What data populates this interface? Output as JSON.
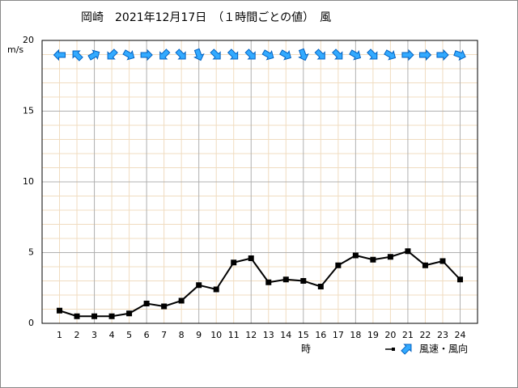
{
  "chart_data": {
    "type": "line",
    "title": "岡崎　2021年12月17日　（１時間ごとの値）　風",
    "y_label": "m/s",
    "x_label": "時",
    "x": [
      1,
      2,
      3,
      4,
      5,
      6,
      7,
      8,
      9,
      10,
      11,
      12,
      13,
      14,
      15,
      16,
      17,
      18,
      19,
      20,
      21,
      22,
      23,
      24
    ],
    "xlim": [
      0,
      25
    ],
    "xticks": [
      1,
      2,
      3,
      4,
      5,
      6,
      7,
      8,
      9,
      10,
      11,
      12,
      13,
      14,
      15,
      16,
      17,
      18,
      19,
      20,
      21,
      22,
      23,
      24
    ],
    "ylim": [
      0,
      20
    ],
    "yticks": [
      0,
      5,
      10,
      15,
      20
    ],
    "yminor": [
      1,
      2,
      3,
      4,
      6,
      7,
      8,
      9,
      11,
      12,
      13,
      14,
      16,
      17,
      18,
      19
    ],
    "grid": true,
    "series": [
      {
        "name": "風速・風向",
        "color": "#000000",
        "values": [
          0.9,
          0.5,
          0.5,
          0.5,
          0.7,
          1.4,
          1.2,
          1.6,
          2.7,
          2.4,
          4.3,
          4.6,
          2.9,
          3.1,
          3.0,
          2.6,
          4.1,
          4.8,
          4.5,
          4.7,
          5.1,
          4.1,
          4.4,
          3.1
        ],
        "directions": [
          270,
          315,
          60,
          225,
          120,
          90,
          225,
          135,
          160,
          135,
          135,
          135,
          120,
          120,
          160,
          135,
          135,
          120,
          135,
          120,
          90,
          90,
          90,
          110
        ],
        "arrow_color": "#33aaff"
      }
    ]
  }
}
